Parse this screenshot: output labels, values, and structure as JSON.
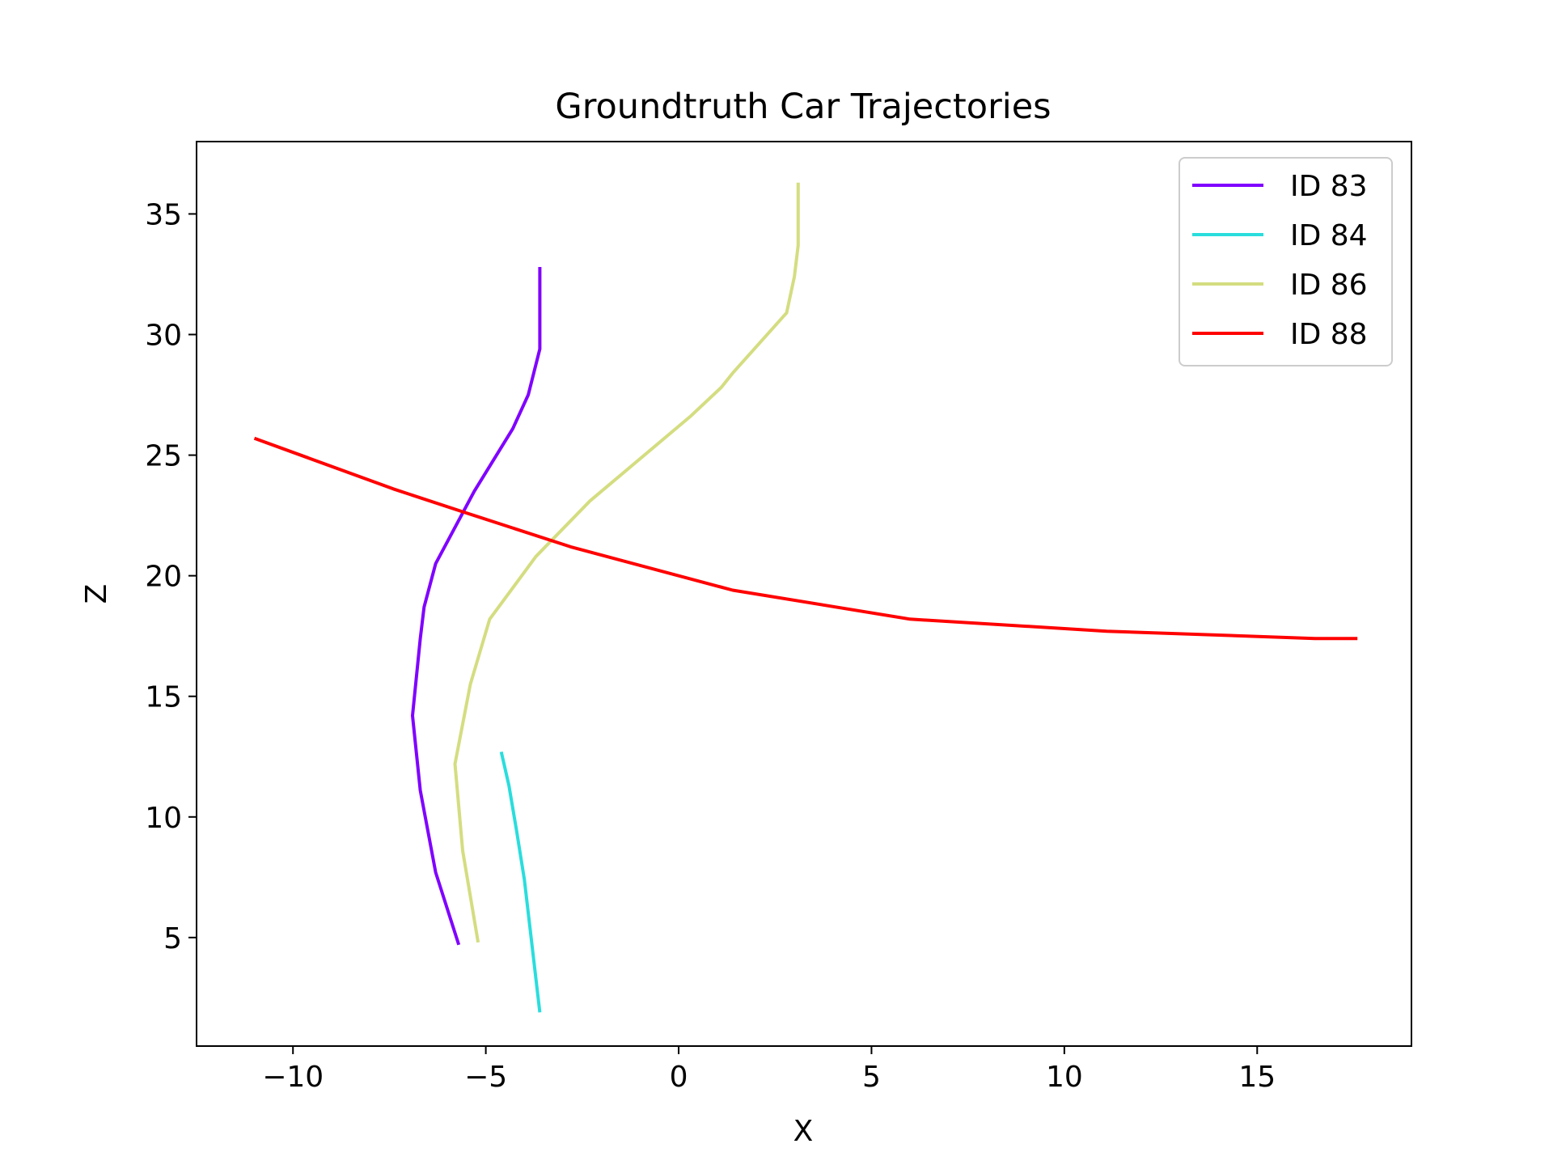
{
  "chart_data": {
    "type": "line",
    "title": "Groundtruth Car Trajectories",
    "xlabel": "X",
    "ylabel": "Z",
    "xlim": [
      -12.5,
      19
    ],
    "ylim": [
      0.5,
      38
    ],
    "xticks": [
      -10,
      -5,
      0,
      5,
      10,
      15
    ],
    "xtick_labels": [
      "−10",
      "−5",
      "0",
      "5",
      "10",
      "15"
    ],
    "yticks": [
      5,
      10,
      15,
      20,
      25,
      30,
      35
    ],
    "ytick_labels": [
      "5",
      "10",
      "15",
      "20",
      "25",
      "30",
      "35"
    ],
    "grid": false,
    "legend": "top-right",
    "series": [
      {
        "name": "ID 83",
        "color": "#8000ff",
        "points": [
          [
            -3.6,
            32.8
          ],
          [
            -3.6,
            29.4
          ],
          [
            -3.9,
            27.5
          ],
          [
            -4.3,
            26.1
          ],
          [
            -5.3,
            23.5
          ],
          [
            -6.3,
            20.5
          ],
          [
            -6.6,
            18.7
          ],
          [
            -6.7,
            17.4
          ],
          [
            -6.9,
            14.2
          ],
          [
            -6.7,
            11.1
          ],
          [
            -6.3,
            7.7
          ],
          [
            -5.7,
            4.7
          ]
        ]
      },
      {
        "name": "ID 84",
        "color": "#2adddd",
        "points": [
          [
            -4.6,
            12.7
          ],
          [
            -4.4,
            11.3
          ],
          [
            -4.2,
            9.4
          ],
          [
            -4.0,
            7.4
          ],
          [
            -3.6,
            1.9
          ]
        ]
      },
      {
        "name": "ID 86",
        "color": "#d4dd80",
        "points": [
          [
            3.1,
            36.3
          ],
          [
            3.1,
            33.7
          ],
          [
            3.0,
            32.4
          ],
          [
            2.8,
            30.9
          ],
          [
            1.4,
            28.4
          ],
          [
            1.1,
            27.8
          ],
          [
            0.3,
            26.6
          ],
          [
            -2.3,
            23.1
          ],
          [
            -3.7,
            20.8
          ],
          [
            -4.9,
            18.2
          ],
          [
            -5.4,
            15.5
          ],
          [
            -5.8,
            12.2
          ],
          [
            -5.6,
            8.6
          ],
          [
            -5.2,
            4.8
          ]
        ]
      },
      {
        "name": "ID 88",
        "color": "#ff0000",
        "points": [
          [
            -11.0,
            25.7
          ],
          [
            -7.4,
            23.6
          ],
          [
            -5.5,
            22.6
          ],
          [
            -2.8,
            21.2
          ],
          [
            1.4,
            19.4
          ],
          [
            6.0,
            18.2
          ],
          [
            11.1,
            17.7
          ],
          [
            16.5,
            17.4
          ],
          [
            17.6,
            17.4
          ]
        ]
      }
    ]
  }
}
